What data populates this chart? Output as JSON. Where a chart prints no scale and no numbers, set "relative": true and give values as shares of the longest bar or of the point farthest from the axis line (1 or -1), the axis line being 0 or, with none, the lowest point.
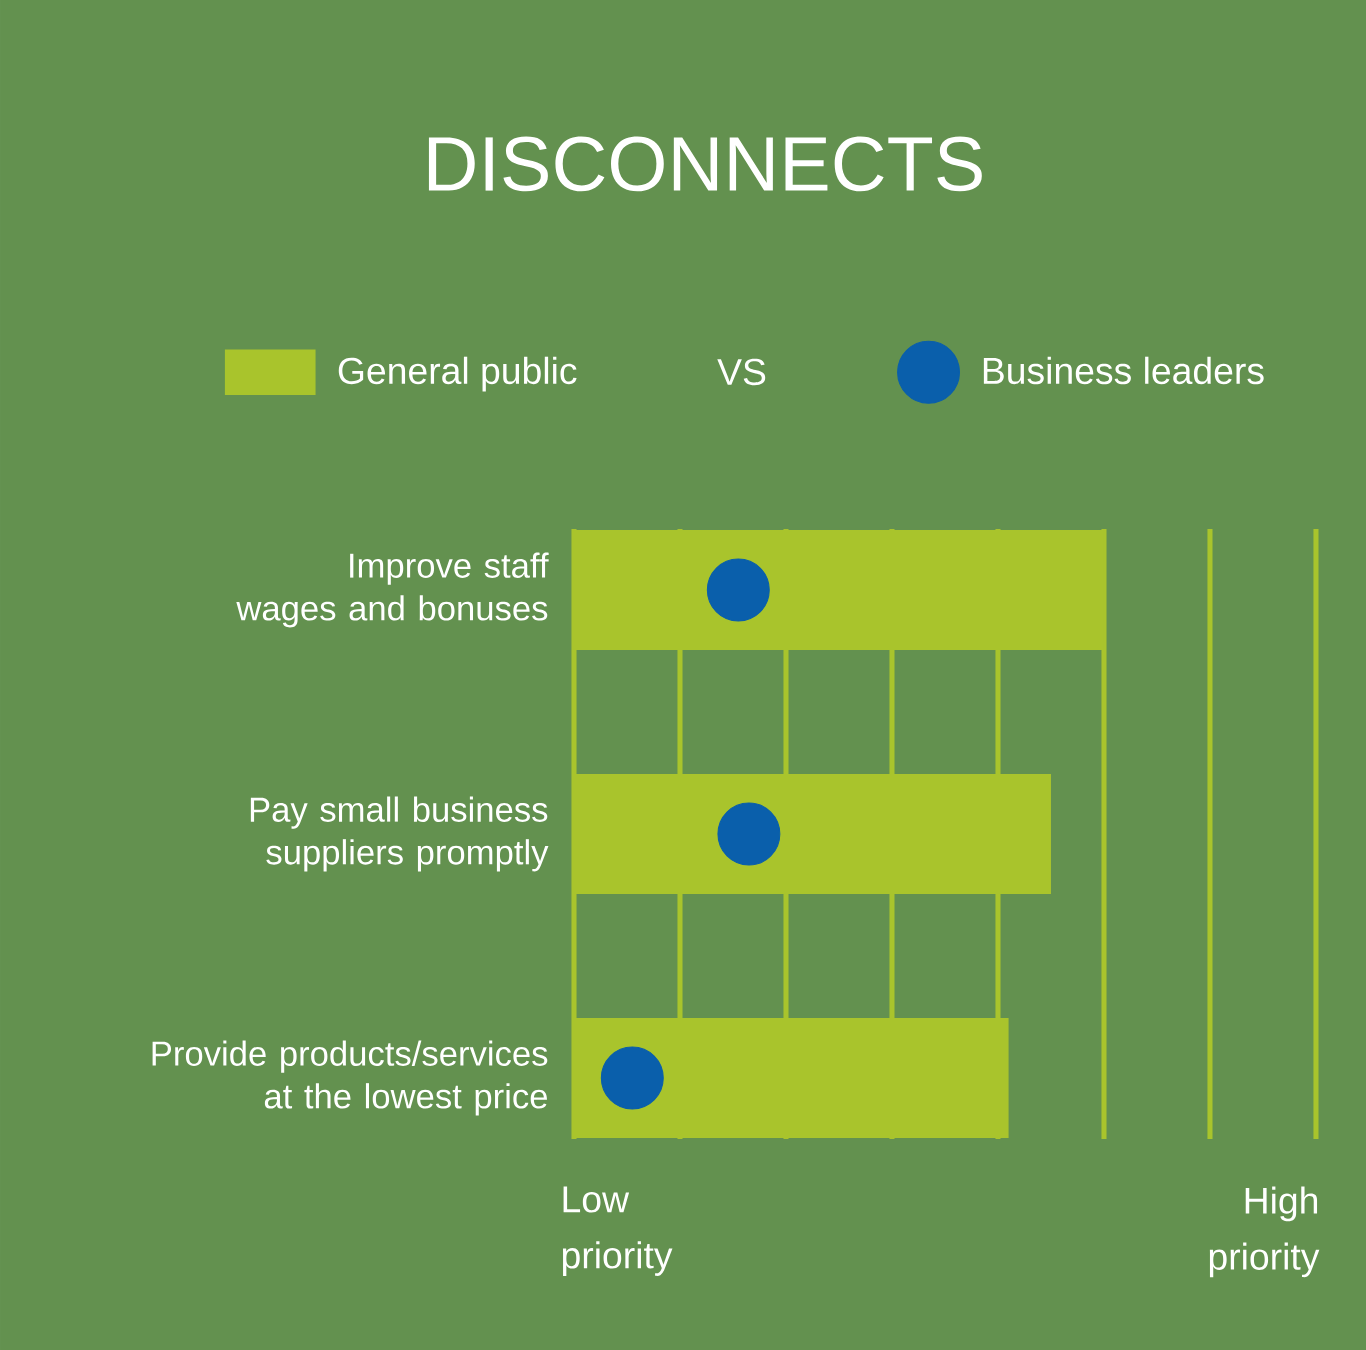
{
  "chart_data": {
    "type": "bar",
    "orientation": "horizontal",
    "relative": true,
    "title": "DISCONNECTS",
    "categories": [
      "Improve staff wages and bonuses",
      "Pay small business suppliers promptly",
      "Provide products/services at the lowest price"
    ],
    "series": [
      {
        "name": "General public",
        "color": "#a9c42c",
        "values": [
          1,
          0.9,
          0.82
        ]
      },
      {
        "name": "Business leaders",
        "type": "scatter",
        "color": "#0a5fab",
        "values": [
          0.31,
          0.33,
          0.11
        ]
      }
    ],
    "legend": "top",
    "ref_lines": [
      {
        "axis": "x",
        "value": 0,
        "color": "#a9c42c"
      },
      {
        "axis": "x",
        "value": 0.2,
        "color": "#a9c42c"
      },
      {
        "axis": "x",
        "value": 0.4,
        "color": "#a9c42c"
      },
      {
        "axis": "x",
        "value": 0.6,
        "color": "#a9c42c"
      },
      {
        "axis": "x",
        "value": 0.8,
        "color": "#a9c42c"
      },
      {
        "axis": "x",
        "value": 1,
        "color": "#a9c42c"
      },
      {
        "axis": "x",
        "value": 1.2,
        "color": "#a9c42c"
      },
      {
        "axis": "x",
        "value": 1.4,
        "color": "#a9c42c"
      }
    ],
    "annotations": [
      "VS",
      "Low priority",
      "High priority"
    ]
  }
}
